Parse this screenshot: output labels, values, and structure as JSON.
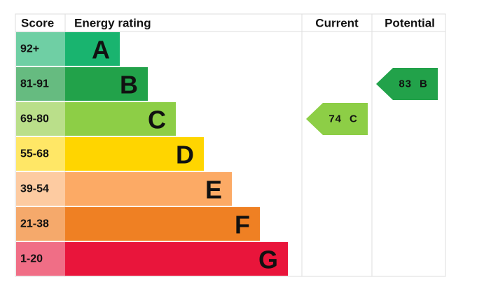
{
  "header": {
    "score": "Score",
    "rating": "Energy rating",
    "current": "Current",
    "potential": "Potential"
  },
  "bands": [
    {
      "score": "92+",
      "letter": "A",
      "color": "#19b46f",
      "light": "#6fcfa4"
    },
    {
      "score": "81-91",
      "letter": "B",
      "color": "#22a24a",
      "light": "#66bb80"
    },
    {
      "score": "69-80",
      "letter": "C",
      "color": "#8dce46",
      "light": "#badf8a"
    },
    {
      "score": "55-68",
      "letter": "D",
      "color": "#ffd500",
      "light": "#ffe766"
    },
    {
      "score": "39-54",
      "letter": "E",
      "color": "#fcaa65",
      "light": "#fdcba1"
    },
    {
      "score": "21-38",
      "letter": "F",
      "color": "#ef8023",
      "light": "#f5a96b"
    },
    {
      "score": "1-20",
      "letter": "G",
      "color": "#e9153b",
      "light": "#f06e86"
    }
  ],
  "current": {
    "value": 74,
    "band": "C"
  },
  "potential": {
    "value": 83,
    "band": "B"
  }
}
